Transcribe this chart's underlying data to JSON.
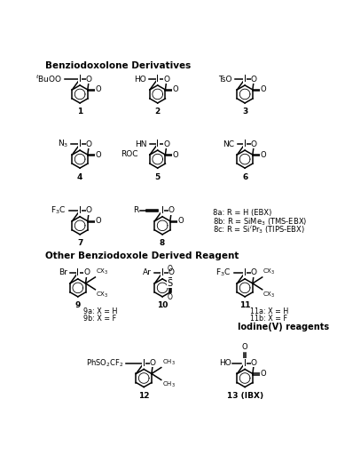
{
  "bg_color": "#ffffff",
  "title": "Benziodoxolone Derivatives",
  "subtitle": "Other Benziodoxole Derived Reagent",
  "iodine_v_label": "Iodine(V) reagents",
  "notes_8": [
    "8a: R = H (EBX)",
    "8b: R = SiMe$_3$ (TMS-EBX)",
    "8c: R = Si$^i$Pr$_3$ (TIPS-EBX)"
  ],
  "lw": 1.1,
  "ring_r": 13,
  "font_size_label": 6.5,
  "font_size_atom": 6.5,
  "font_size_number": 6.5,
  "font_size_title": 7.5
}
